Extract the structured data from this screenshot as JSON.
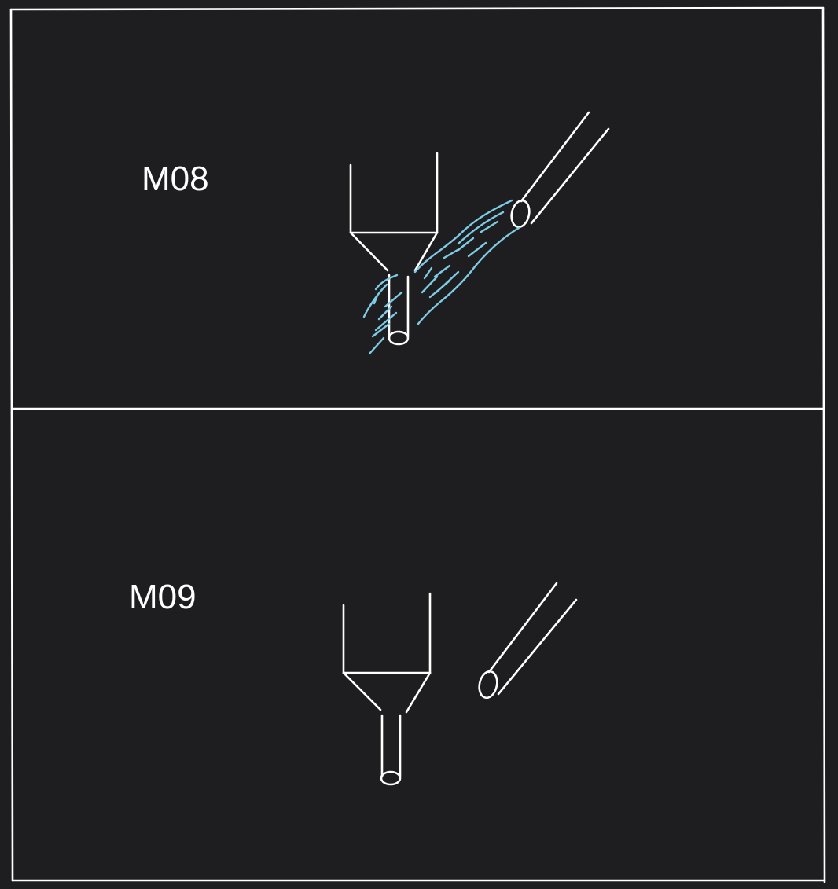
{
  "panels": [
    {
      "code": "M08",
      "coolant_flow": true
    },
    {
      "code": "M09",
      "coolant_flow": false
    }
  ],
  "colors": {
    "background": "#1e1e20",
    "line": "#ffffff",
    "coolant": "#7ecbe6"
  }
}
